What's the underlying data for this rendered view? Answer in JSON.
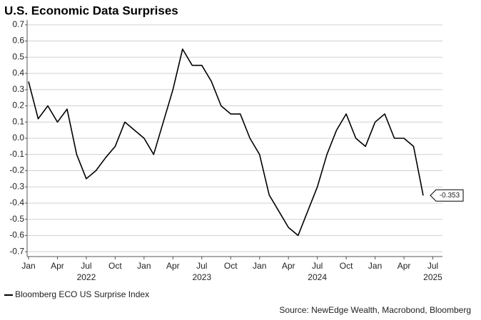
{
  "chart_data": {
    "type": "line",
    "title": "U.S. Economic Data Surprises",
    "source": "Source: NewEdge Wealth, Macrobond, Bloomberg",
    "x": [
      "2022-01",
      "2022-02",
      "2022-03",
      "2022-04",
      "2022-05",
      "2022-06",
      "2022-07",
      "2022-08",
      "2022-09",
      "2022-10",
      "2022-11",
      "2022-12",
      "2023-01",
      "2023-02",
      "2023-03",
      "2023-04",
      "2023-05",
      "2023-06",
      "2023-07",
      "2023-08",
      "2023-09",
      "2023-10",
      "2023-11",
      "2023-12",
      "2024-01",
      "2024-02",
      "2024-03",
      "2024-04",
      "2024-05",
      "2024-06",
      "2024-07",
      "2024-08",
      "2024-09",
      "2024-10",
      "2024-11",
      "2024-12",
      "2025-01",
      "2025-02",
      "2025-03",
      "2025-04",
      "2025-05",
      "2025-06"
    ],
    "series": [
      {
        "name": "Bloomberg ECO US Surprise Index",
        "color": "#000000",
        "values": [
          0.35,
          0.12,
          0.2,
          0.1,
          0.18,
          -0.1,
          -0.25,
          -0.2,
          -0.12,
          -0.05,
          0.1,
          0.05,
          0.0,
          -0.1,
          0.1,
          0.3,
          0.55,
          0.45,
          0.45,
          0.35,
          0.2,
          0.15,
          0.15,
          0.0,
          -0.1,
          -0.35,
          -0.45,
          -0.55,
          -0.6,
          -0.45,
          -0.3,
          -0.1,
          0.05,
          0.15,
          0.0,
          -0.05,
          0.1,
          0.15,
          0.0,
          0.0,
          -0.05,
          -0.353
        ]
      }
    ],
    "label_last": true,
    "xlim": [
      "2022-01",
      "2025-08"
    ],
    "xticks": [
      {
        "value": "2022-01",
        "label": "Jan"
      },
      {
        "value": "2022-04",
        "label": "Apr"
      },
      {
        "value": "2022-07",
        "label": "Jul"
      },
      {
        "value": "2022-10",
        "label": "Oct"
      },
      {
        "value": "2023-01",
        "label": "Jan"
      },
      {
        "value": "2023-04",
        "label": "Apr"
      },
      {
        "value": "2023-07",
        "label": "Jul"
      },
      {
        "value": "2023-10",
        "label": "Oct"
      },
      {
        "value": "2024-01",
        "label": "Jan"
      },
      {
        "value": "2024-04",
        "label": "Apr"
      },
      {
        "value": "2024-07",
        "label": "Jul"
      },
      {
        "value": "2024-10",
        "label": "Oct"
      },
      {
        "value": "2025-01",
        "label": "Jan"
      },
      {
        "value": "2025-04",
        "label": "Apr"
      },
      {
        "value": "2025-07",
        "label": "Jul"
      }
    ],
    "x_year_labels": [
      {
        "value": "2022-07",
        "label": "2022"
      },
      {
        "value": "2023-07",
        "label": "2023"
      },
      {
        "value": "2024-07",
        "label": "2024"
      },
      {
        "value": "2025-07",
        "label": "2025"
      }
    ],
    "ylim": [
      -0.73,
      0.73
    ],
    "yticks": [
      0.7,
      0.6,
      0.5,
      0.4,
      0.3,
      0.2,
      0.1,
      {
        "value": 0,
        "label": "0.0"
      },
      -0.1,
      -0.2,
      -0.3,
      -0.4,
      -0.5,
      -0.6,
      -0.7
    ],
    "grid": true,
    "legend": "bottom-left"
  }
}
